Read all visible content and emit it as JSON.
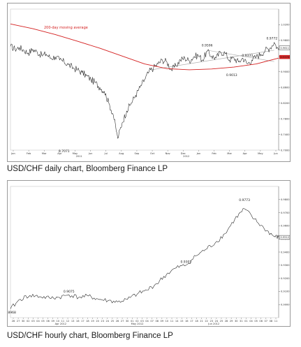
{
  "captions": {
    "daily": "USD/CHF daily chart, Bloomberg Finance LP",
    "hourly": "USD/CHF hourly chart, Bloomberg Finance LP"
  },
  "colors": {
    "price": "#1a1a1a",
    "moving_average": "#d42020",
    "current_price_label": "#3c3c3c",
    "ma_price_label": "#d42020",
    "trendlines": "#b0b0b0"
  },
  "chart_data": [
    {
      "type": "line",
      "title": "USD/CHF daily",
      "ylim": [
        0.7,
        1.06
      ],
      "yticks": [
        {
          "value": 1.02,
          "label": "1.0200"
        },
        {
          "value": 0.98,
          "label": "0.9800"
        },
        {
          "value": 0.94,
          "label": "0.9400"
        },
        {
          "value": 0.9,
          "label": "0.9000"
        },
        {
          "value": 0.86,
          "label": "0.8600"
        },
        {
          "value": 0.82,
          "label": "0.8200"
        },
        {
          "value": 0.78,
          "label": "0.7800"
        },
        {
          "value": 0.74,
          "label": "0.7400"
        },
        {
          "value": 0.7,
          "label": "0.7000"
        }
      ],
      "xticks": [
        "Jan",
        "Feb",
        "Mar",
        "Apr",
        "May",
        "Jun",
        "Jul",
        "Aug",
        "Sep",
        "Oct",
        "Nov",
        "Dec",
        "Jan",
        "Feb",
        "Mar",
        "Apr",
        "May",
        "Jun"
      ],
      "year_labels": [
        "2011",
        "2012"
      ],
      "x_index_range": [
        0,
        120
      ],
      "series": [
        {
          "name": "Price",
          "x": [
            0,
            2,
            4,
            6,
            8,
            10,
            12,
            14,
            16,
            18,
            20,
            22,
            24,
            26,
            28,
            30,
            32,
            34,
            36,
            38,
            40,
            42,
            44,
            46,
            48,
            50,
            52,
            54,
            56,
            58,
            60,
            62,
            64,
            66,
            68,
            70,
            72,
            74,
            76,
            78,
            80,
            82,
            84,
            86,
            88,
            90,
            92,
            94,
            96,
            98,
            100,
            102,
            104,
            106,
            108,
            110,
            112,
            114,
            116,
            118,
            120
          ],
          "values": [
            0.965,
            0.958,
            0.962,
            0.955,
            0.948,
            0.957,
            0.95,
            0.942,
            0.945,
            0.935,
            0.938,
            0.93,
            0.925,
            0.918,
            0.91,
            0.905,
            0.898,
            0.89,
            0.88,
            0.872,
            0.86,
            0.85,
            0.82,
            0.79,
            0.73,
            0.77,
            0.8,
            0.82,
            0.84,
            0.86,
            0.88,
            0.9,
            0.91,
            0.92,
            0.93,
            0.925,
            0.905,
            0.915,
            0.93,
            0.935,
            0.928,
            0.938,
            0.942,
            0.93,
            0.952,
            0.94,
            0.935,
            0.95,
            0.948,
            0.93,
            0.935,
            0.925,
            0.935,
            0.92,
            0.93,
            0.938,
            0.945,
            0.955,
            0.96,
            0.975,
            0.955
          ]
        },
        {
          "name": "200-day moving average",
          "x": [
            0,
            10,
            20,
            30,
            40,
            50,
            60,
            70,
            80,
            90,
            100,
            110,
            120
          ],
          "values": [
            1.022,
            1.01,
            0.995,
            0.978,
            0.96,
            0.94,
            0.92,
            0.908,
            0.905,
            0.907,
            0.912,
            0.92,
            0.935
          ]
        }
      ],
      "last_price": {
        "value": 0.9611,
        "label": "0.9611"
      },
      "ma_value": {
        "value": 0.9376,
        "label": "0.9376"
      },
      "annotations": [
        {
          "x": 24,
          "y": 0.7071,
          "label": "0.7071"
        },
        {
          "x": 88,
          "y": 0.9596,
          "label": "0.9596"
        },
        {
          "x": 106,
          "y": 0.9333,
          "label": "0.9333"
        },
        {
          "x": 99,
          "y": 0.9013,
          "label": "0.9013"
        },
        {
          "x": 117,
          "y": 0.9772,
          "label": "0.9772"
        }
      ],
      "trendlines": [
        {
          "x": [
            63,
            118
          ],
          "y": [
            0.905,
            0.955
          ]
        },
        {
          "x": [
            88,
            118
          ],
          "y": [
            0.955,
            0.926
          ]
        }
      ],
      "grid": false
    },
    {
      "type": "line",
      "title": "USD/CHF hourly",
      "ylim": [
        0.89,
        0.99
      ],
      "yticks": [
        {
          "value": 0.98,
          "label": "0.9800"
        },
        {
          "value": 0.97,
          "label": "0.9700"
        },
        {
          "value": 0.96,
          "label": "0.9600"
        },
        {
          "value": 0.95,
          "label": "0.9500"
        },
        {
          "value": 0.94,
          "label": "0.9400"
        },
        {
          "value": 0.93,
          "label": "0.9300"
        },
        {
          "value": 0.92,
          "label": "0.9200"
        },
        {
          "value": 0.91,
          "label": "0.9100"
        },
        {
          "value": 0.9,
          "label": "0.9000"
        }
      ],
      "xticks": [
        "26",
        "27",
        "30",
        "02",
        "03",
        "04",
        "05",
        "06",
        "09",
        "10",
        "11",
        "12",
        "13",
        "16",
        "17",
        "18",
        "19",
        "20",
        "23",
        "24",
        "25",
        "26",
        "27",
        "30",
        "01",
        "02",
        "03",
        "04",
        "07",
        "08",
        "09",
        "10",
        "11",
        "14",
        "15",
        "16",
        "17",
        "18",
        "21",
        "22",
        "23",
        "24",
        "25",
        "28",
        "29",
        "30",
        "31",
        "01",
        "04",
        "05",
        "06",
        "07",
        "08",
        "11"
      ],
      "month_labels": [
        "Apr 2012",
        "May 2012",
        "Jun 2012"
      ],
      "x_index_range": [
        0,
        110
      ],
      "series": [
        {
          "name": "Price",
          "x": [
            0,
            4,
            8,
            12,
            16,
            20,
            24,
            28,
            32,
            36,
            40,
            44,
            48,
            52,
            56,
            60,
            64,
            68,
            72,
            76,
            80,
            84,
            88,
            92,
            96,
            100,
            104,
            108,
            110
          ],
          "values": [
            0.8968,
            0.904,
            0.907,
            0.906,
            0.905,
            0.9055,
            0.9075,
            0.9055,
            0.9065,
            0.904,
            0.903,
            0.902,
            0.904,
            0.908,
            0.911,
            0.916,
            0.923,
            0.928,
            0.93,
            0.937,
            0.942,
            0.947,
            0.954,
            0.965,
            0.973,
            0.965,
            0.958,
            0.952,
            0.9512
          ]
        }
      ],
      "last_price": {
        "value": 0.9512,
        "label": "0.9512"
      },
      "annotations": [
        {
          "x": 0,
          "y": 0.8968,
          "label": "0.8968"
        },
        {
          "x": 24,
          "y": 0.9075,
          "label": "0.9075"
        },
        {
          "x": 72,
          "y": 0.9301,
          "label": "0.9301"
        },
        {
          "x": 96,
          "y": 0.9773,
          "label": "0.9773"
        }
      ],
      "grid": false
    }
  ]
}
